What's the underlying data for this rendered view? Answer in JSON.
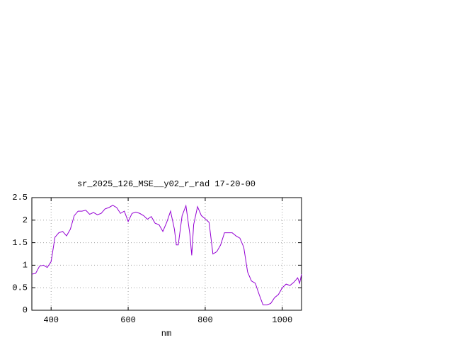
{
  "chart_data": {
    "type": "line",
    "title": "sr_2025_126_MSE__y02_r_rad 17-20-00",
    "x_label": "nm",
    "x": [
      350,
      360,
      370,
      380,
      390,
      400,
      410,
      420,
      430,
      440,
      450,
      460,
      470,
      480,
      490,
      500,
      510,
      520,
      530,
      540,
      550,
      560,
      570,
      580,
      590,
      600,
      610,
      620,
      630,
      640,
      650,
      660,
      670,
      680,
      690,
      700,
      710,
      720,
      725,
      730,
      740,
      750,
      760,
      765,
      770,
      780,
      790,
      800,
      810,
      820,
      830,
      840,
      850,
      860,
      870,
      880,
      890,
      900,
      910,
      920,
      930,
      940,
      950,
      960,
      970,
      980,
      990,
      1000,
      1010,
      1020,
      1030,
      1040,
      1045,
      1050
    ],
    "series": [
      {
        "color": "#9400d3",
        "values": [
          0.8,
          0.82,
          0.98,
          1.0,
          0.95,
          1.08,
          1.62,
          1.72,
          1.75,
          1.65,
          1.8,
          2.1,
          2.2,
          2.2,
          2.22,
          2.13,
          2.17,
          2.12,
          2.15,
          2.25,
          2.28,
          2.33,
          2.28,
          2.15,
          2.2,
          1.97,
          2.15,
          2.18,
          2.15,
          2.1,
          2.02,
          2.08,
          1.93,
          1.9,
          1.75,
          1.95,
          2.2,
          1.8,
          1.45,
          1.45,
          2.1,
          2.32,
          1.7,
          1.22,
          1.9,
          2.3,
          2.1,
          2.03,
          1.95,
          1.25,
          1.3,
          1.45,
          1.72,
          1.72,
          1.72,
          1.65,
          1.6,
          1.4,
          0.85,
          0.65,
          0.6,
          0.35,
          0.12,
          0.12,
          0.15,
          0.28,
          0.35,
          0.5,
          0.58,
          0.55,
          0.62,
          0.72,
          0.6,
          0.8
        ]
      }
    ],
    "xlim": [
      350,
      1050
    ],
    "xticks": [
      400,
      600,
      800,
      1000
    ],
    "ylim": [
      0,
      2.5
    ],
    "yticks": [
      0,
      0.5,
      1,
      1.5,
      2,
      2.5
    ],
    "grid": true
  }
}
